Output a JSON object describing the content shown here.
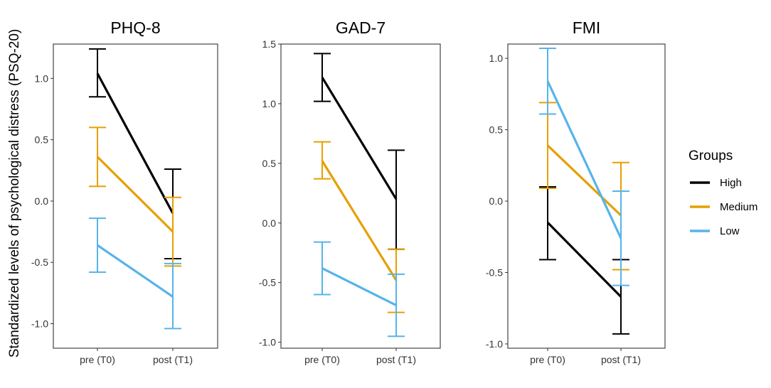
{
  "chart_data": {
    "type": "line",
    "ylabel": "Standardized levels of psychological distress (PSQ-20)",
    "legend": {
      "title": "Groups",
      "placement": "right",
      "entries": [
        {
          "name": "High",
          "color": "#000000"
        },
        {
          "name": "Medium",
          "color": "#E69F00"
        },
        {
          "name": "Low",
          "color": "#56B4E9"
        }
      ]
    },
    "panels": [
      {
        "title": "PHQ-8",
        "categories": [
          "pre (T0)",
          "post (T1)"
        ],
        "ylim": [
          -1.2,
          1.28
        ],
        "yticks": [
          1.0,
          0.5,
          0.0,
          -0.5,
          -1.0
        ],
        "ytick_labels": [
          "1.0",
          "0.5",
          "0.0",
          "-0.5",
          "-1.0"
        ],
        "series": [
          {
            "name": "High",
            "values": [
              1.04,
              -0.1
            ],
            "lower": [
              0.85,
              -0.47
            ],
            "upper": [
              1.24,
              0.26
            ]
          },
          {
            "name": "Medium",
            "values": [
              0.36,
              -0.25
            ],
            "lower": [
              0.12,
              -0.53
            ],
            "upper": [
              0.6,
              0.03
            ]
          },
          {
            "name": "Low",
            "values": [
              -0.36,
              -0.78
            ],
            "lower": [
              -0.58,
              -1.04
            ],
            "upper": [
              -0.14,
              -0.51
            ]
          }
        ]
      },
      {
        "title": "GAD-7",
        "categories": [
          "pre (T0)",
          "post (T1)"
        ],
        "ylim": [
          -1.05,
          1.5
        ],
        "yticks": [
          1.5,
          1.0,
          0.5,
          0.0,
          -0.5,
          -1.0
        ],
        "ytick_labels": [
          "1.5",
          "1.0",
          "0.5",
          "0.0",
          "-0.5",
          "-1.0"
        ],
        "series": [
          {
            "name": "High",
            "values": [
              1.22,
              0.2
            ],
            "lower": [
              1.02,
              -0.22
            ],
            "upper": [
              1.42,
              0.61
            ]
          },
          {
            "name": "Medium",
            "values": [
              0.52,
              -0.48
            ],
            "lower": [
              0.37,
              -0.75
            ],
            "upper": [
              0.68,
              -0.22
            ]
          },
          {
            "name": "Low",
            "values": [
              -0.38,
              -0.69
            ],
            "lower": [
              -0.6,
              -0.95
            ],
            "upper": [
              -0.16,
              -0.43
            ]
          }
        ]
      },
      {
        "title": "FMI",
        "categories": [
          "pre (T0)",
          "post (T1)"
        ],
        "ylim": [
          -1.03,
          1.1
        ],
        "yticks": [
          1.0,
          0.5,
          0.0,
          -0.5,
          -1.0
        ],
        "ytick_labels": [
          "1.0",
          "0.5",
          "0.0",
          "-0.5",
          "-1.0"
        ],
        "series": [
          {
            "name": "High",
            "values": [
              -0.15,
              -0.67
            ],
            "lower": [
              -0.41,
              -0.93
            ],
            "upper": [
              0.1,
              -0.41
            ]
          },
          {
            "name": "Medium",
            "values": [
              0.39,
              -0.1
            ],
            "lower": [
              0.09,
              -0.48
            ],
            "upper": [
              0.69,
              0.27
            ]
          },
          {
            "name": "Low",
            "values": [
              0.84,
              -0.26
            ],
            "lower": [
              0.61,
              -0.59
            ],
            "upper": [
              1.07,
              0.07
            ]
          }
        ]
      }
    ]
  }
}
